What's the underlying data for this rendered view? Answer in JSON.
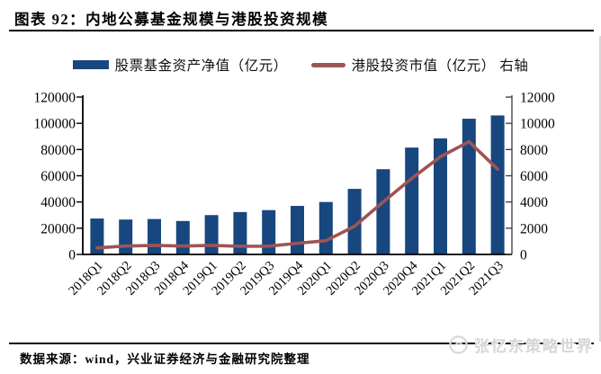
{
  "header": {
    "title": "图表 92：内地公募基金规模与港股投资规模"
  },
  "legend": {
    "items": [
      {
        "label": "股票基金资产净值（亿元）",
        "marker": "bar-swatch",
        "color": "#17477E"
      },
      {
        "label": "港股投资市值（亿元） 右轴",
        "marker": "line-swatch",
        "color": "#9E5454"
      }
    ]
  },
  "chart_data": {
    "type": "bar",
    "subtype": "combo-bar-line-dual-axis",
    "title": "内地公募基金规模与港股投资规模",
    "categories": [
      "2018Q1",
      "2018Q2",
      "2018Q3",
      "2018Q4",
      "2019Q1",
      "2019Q2",
      "2019Q3",
      "2019Q4",
      "2020Q1",
      "2020Q2",
      "2020Q3",
      "2020Q4",
      "2021Q1",
      "2021Q2",
      "2021Q3"
    ],
    "series": [
      {
        "name": "股票基金资产净值（亿元）",
        "type": "bar",
        "axis": "left",
        "color": "#17477E",
        "values": [
          27400,
          26600,
          27000,
          25500,
          30000,
          32300,
          33800,
          37000,
          40000,
          50000,
          65000,
          81500,
          88500,
          103500,
          106000
        ]
      },
      {
        "name": "港股投资市值（亿元）",
        "type": "line",
        "axis": "right",
        "color": "#9E5454",
        "values": [
          500,
          640,
          690,
          640,
          690,
          620,
          630,
          850,
          1050,
          2150,
          4000,
          5800,
          7450,
          8600,
          6500
        ]
      }
    ],
    "left_axis": {
      "min": 0,
      "max": 120000,
      "step": 20000,
      "tick_labels": [
        "0",
        "20000",
        "40000",
        "60000",
        "80000",
        "100000",
        "120000"
      ]
    },
    "right_axis": {
      "min": 0,
      "max": 12000,
      "step": 2000,
      "tick_labels": [
        "0",
        "2000",
        "4000",
        "6000",
        "8000",
        "10000",
        "12000"
      ]
    },
    "grid": false,
    "legend_position": "top"
  },
  "footer": {
    "source": "数据来源：wind，兴业证券经济与金融研究院整理"
  },
  "watermark": {
    "text": "张忆东策略世界"
  }
}
